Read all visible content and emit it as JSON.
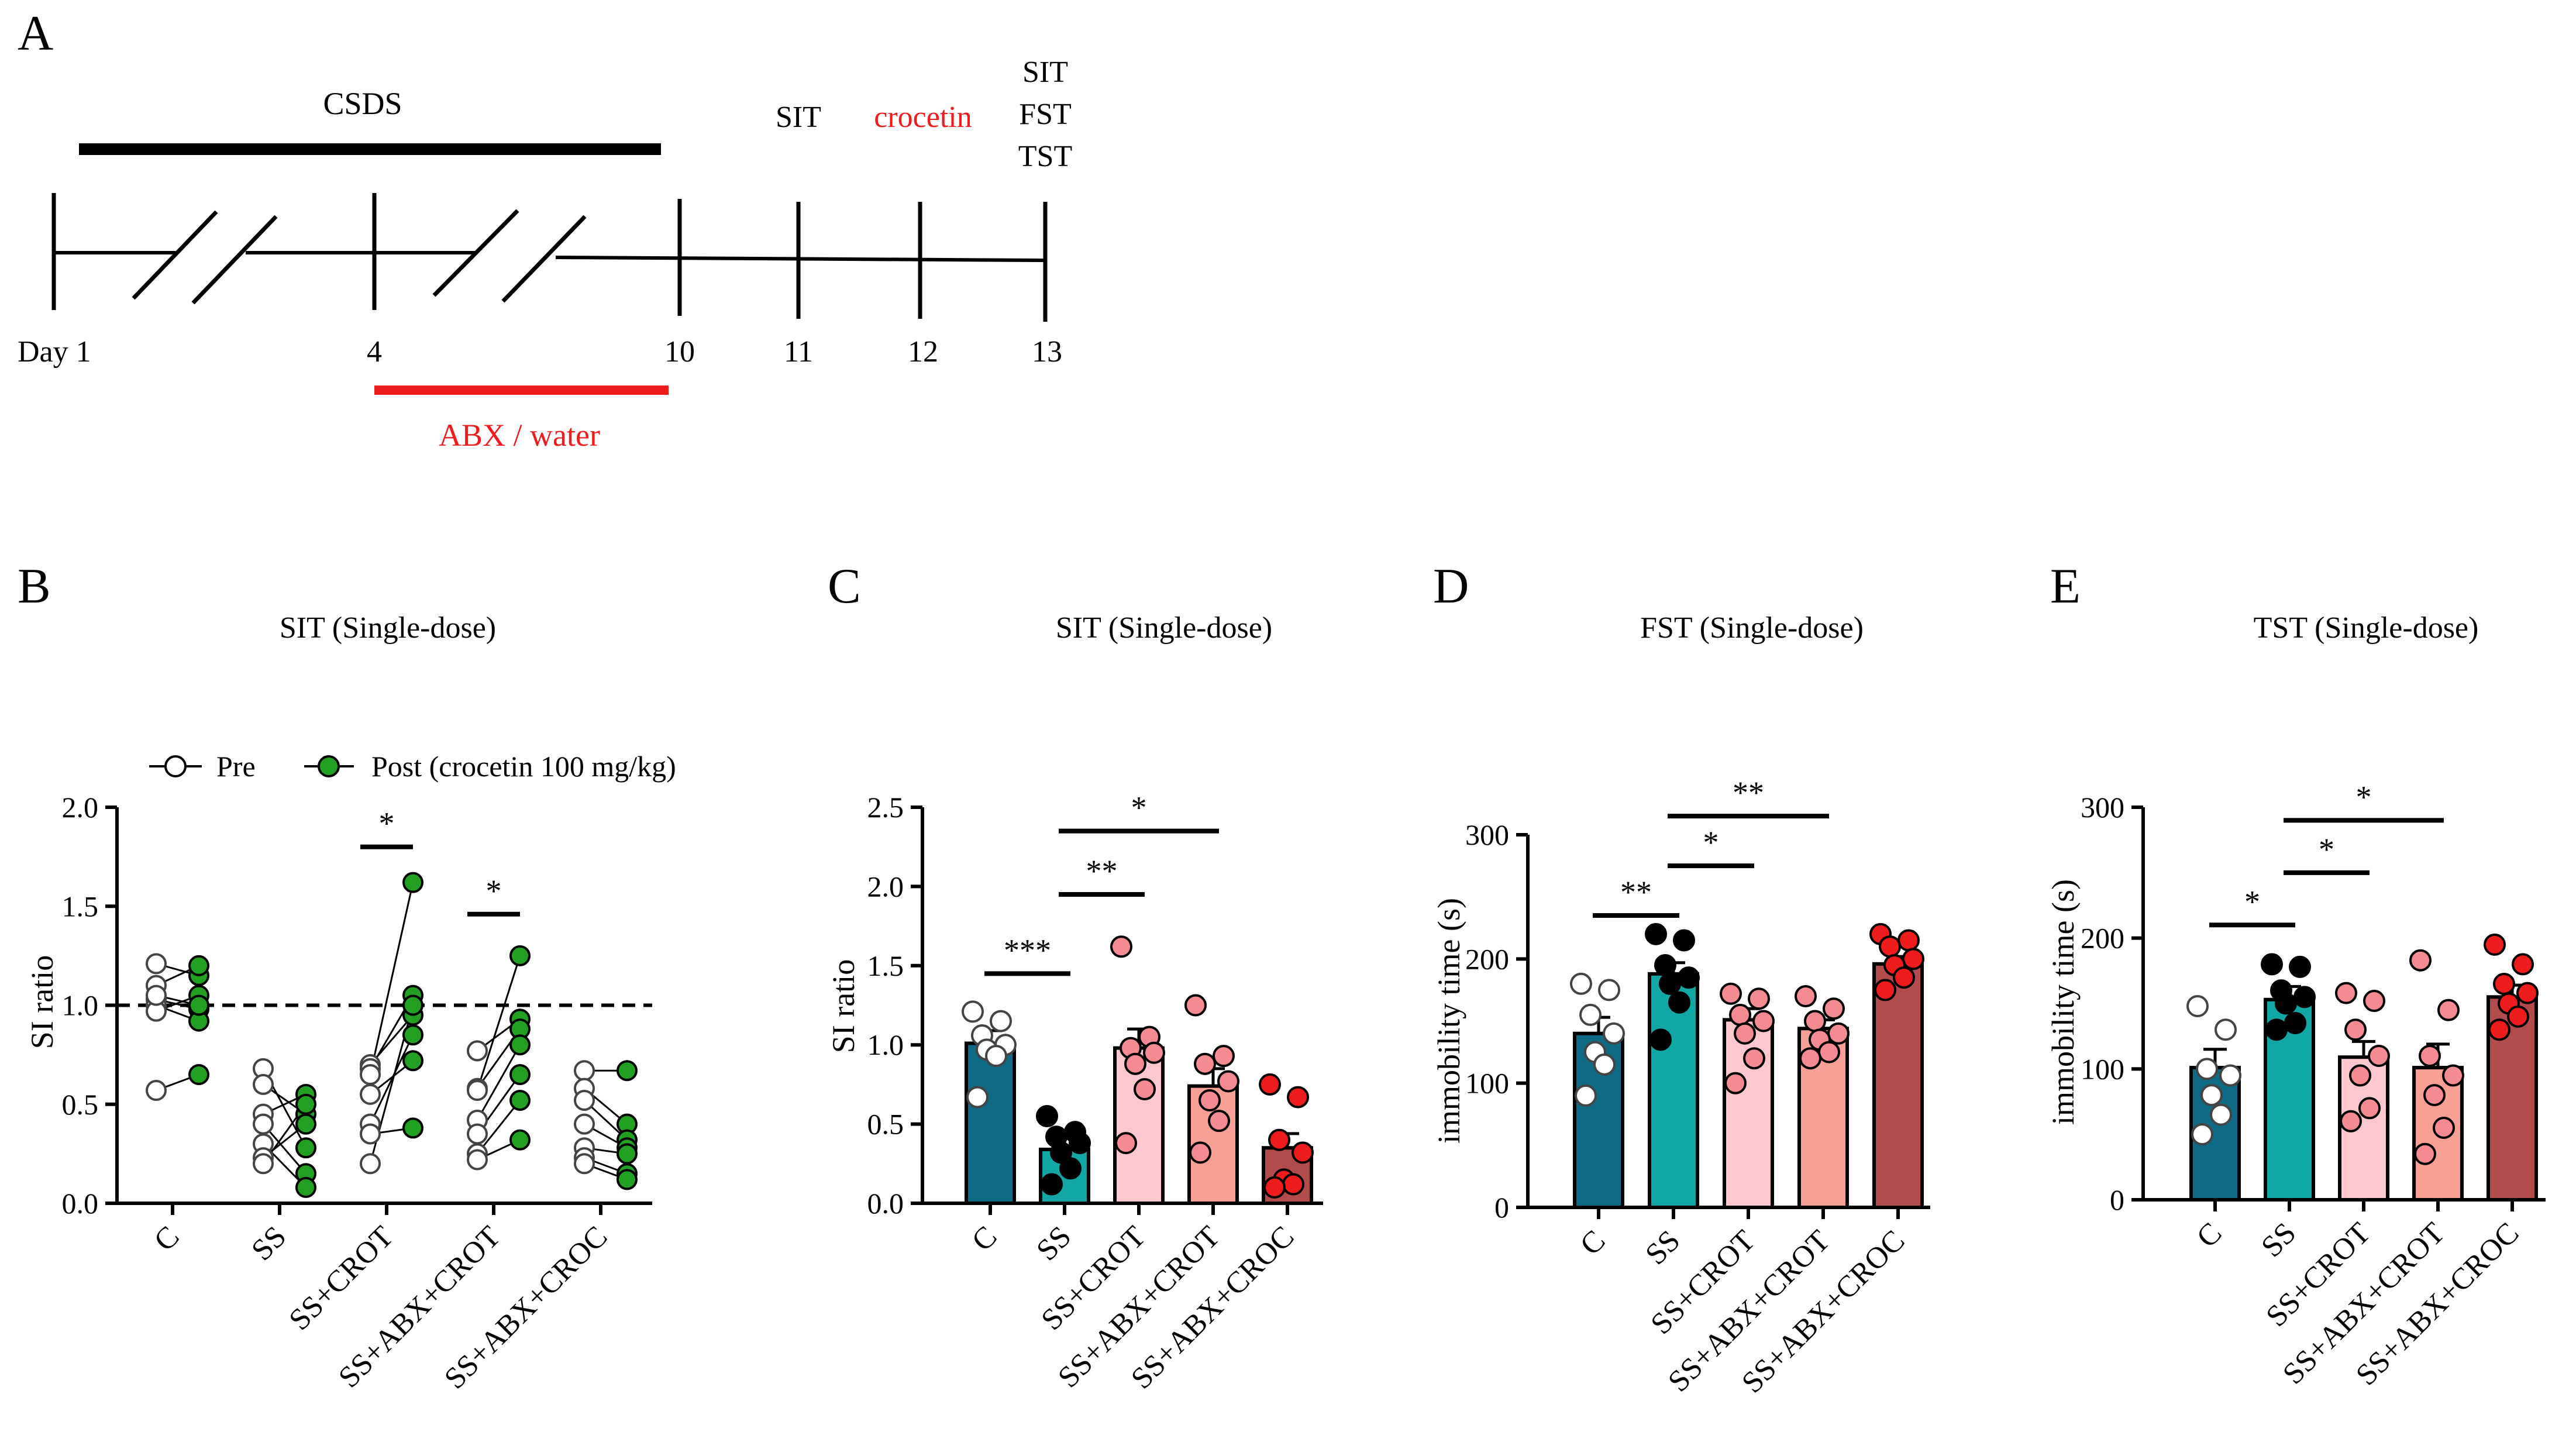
{
  "panel_labels": [
    "A",
    "B",
    "C",
    "D",
    "E"
  ],
  "timeline": {
    "cs_label": "CSDS",
    "day_labels": [
      "Day 1",
      "4",
      "10",
      "11",
      "12",
      "13"
    ],
    "event_labels": [
      "SIT",
      "crocetin",
      "SIT",
      "FST",
      "TST"
    ],
    "abx_label": "ABX / water",
    "colors": {
      "black": "#000000",
      "red": "#ee1c1c"
    }
  },
  "chart_data": [
    {
      "panel": "B",
      "type": "scatter",
      "title": "SIT (Single-dose)",
      "xlabel": "",
      "ylabel": "SI ratio",
      "ylim": [
        0,
        2.0
      ],
      "yticks": [
        "0.0",
        "0.5",
        "1.0",
        "1.5",
        "2.0"
      ],
      "categories": [
        "C",
        "SS",
        "SS+CROT",
        "SS+ABX+CROT",
        "SS+ABX+CROC"
      ],
      "legend": [
        "Pre",
        "Post (crocetin 100 mg/kg)"
      ],
      "reference_line": 1.0,
      "pairs": [
        [
          [
            1.21,
            1.15
          ],
          [
            1.1,
            1.2
          ],
          [
            1.03,
            0.98
          ],
          [
            1.0,
            0.92
          ],
          [
            0.57,
            0.65
          ],
          [
            0.97,
            1.05
          ],
          [
            1.05,
            1.0
          ]
        ],
        [
          [
            0.68,
            0.28
          ],
          [
            0.6,
            0.45
          ],
          [
            0.45,
            0.55
          ],
          [
            0.4,
            0.15
          ],
          [
            0.3,
            0.08
          ],
          [
            0.23,
            0.4
          ],
          [
            0.2,
            0.5
          ]
        ],
        [
          [
            0.7,
            0.95
          ],
          [
            0.68,
            1.05
          ],
          [
            0.65,
            1.62
          ],
          [
            0.55,
            0.72
          ],
          [
            0.4,
            0.85
          ],
          [
            0.35,
            0.38
          ],
          [
            0.2,
            1.0
          ]
        ],
        [
          [
            0.77,
            0.93
          ],
          [
            0.58,
            0.88
          ],
          [
            0.57,
            1.25
          ],
          [
            0.42,
            0.8
          ],
          [
            0.35,
            0.65
          ],
          [
            0.25,
            0.52
          ],
          [
            0.22,
            0.32
          ]
        ],
        [
          [
            0.67,
            0.67
          ],
          [
            0.58,
            0.4
          ],
          [
            0.52,
            0.32
          ],
          [
            0.4,
            0.28
          ],
          [
            0.28,
            0.25
          ],
          [
            0.23,
            0.15
          ],
          [
            0.2,
            0.12
          ]
        ]
      ],
      "significance": [
        {
          "group": 2,
          "label": "*",
          "y": 1.8
        },
        {
          "group": 3,
          "label": "*",
          "y": 1.46
        }
      ],
      "colors": {
        "pre": "#ffffff",
        "post": "#22a022"
      }
    },
    {
      "panel": "C",
      "type": "bar",
      "title": "SIT (Single-dose)",
      "xlabel": "",
      "ylabel": "SI ratio",
      "ylim": [
        0,
        2.5
      ],
      "yticks": [
        "0.0",
        "0.5",
        "1.0",
        "1.5",
        "2.0",
        "2.5"
      ],
      "categories": [
        "C",
        "SS",
        "SS+CROT",
        "SS+ABX+CROT",
        "SS+ABX+CROC"
      ],
      "means": [
        1.01,
        0.34,
        0.98,
        0.74,
        0.35
      ],
      "sems": [
        0.08,
        0.07,
        0.12,
        0.11,
        0.09
      ],
      "points": [
        [
          1.21,
          1.15,
          1.06,
          1.0,
          0.97,
          0.93,
          0.67
        ],
        [
          0.55,
          0.45,
          0.42,
          0.38,
          0.32,
          0.22,
          0.12
        ],
        [
          1.62,
          1.05,
          0.98,
          0.95,
          0.88,
          0.72,
          0.38
        ],
        [
          1.25,
          0.93,
          0.88,
          0.77,
          0.65,
          0.52,
          0.32
        ],
        [
          0.75,
          0.67,
          0.4,
          0.32,
          0.15,
          0.12,
          0.1
        ]
      ],
      "significance": [
        {
          "from": 0,
          "to": 1,
          "label": "***",
          "y": 1.45
        },
        {
          "from": 1,
          "to": 2,
          "label": "**",
          "y": 1.95
        },
        {
          "from": 1,
          "to": 3,
          "label": "*",
          "y": 2.35
        }
      ],
      "colors": [
        "#0f6b85",
        "#11a7a5",
        "#ffc8cf",
        "#f6a096",
        "#b24b4b"
      ],
      "point_colors": [
        "#ffffff",
        "#000000",
        "#f48b93",
        "#f48b93",
        "#ee1c1c"
      ]
    },
    {
      "panel": "D",
      "type": "bar",
      "title": "FST (Single-dose)",
      "xlabel": "",
      "ylabel": "immobility time (s)",
      "ylim": [
        0,
        300
      ],
      "yticks": [
        "0",
        "100",
        "200",
        "300"
      ],
      "categories": [
        "C",
        "SS",
        "SS+CROT",
        "SS+ABX+CROT",
        "SS+ABX+CROC"
      ],
      "means": [
        140,
        188,
        151,
        144,
        196
      ],
      "sems": [
        13,
        9,
        9,
        7,
        6
      ],
      "points": [
        [
          180,
          175,
          155,
          140,
          125,
          115,
          90
        ],
        [
          220,
          215,
          195,
          185,
          180,
          165,
          135
        ],
        [
          172,
          168,
          155,
          150,
          140,
          120,
          100
        ],
        [
          170,
          160,
          150,
          140,
          135,
          125,
          120
        ],
        [
          220,
          215,
          210,
          200,
          195,
          185,
          175
        ]
      ],
      "significance": [
        {
          "from": 0,
          "to": 1,
          "label": "**",
          "y": 235
        },
        {
          "from": 1,
          "to": 2,
          "label": "*",
          "y": 275
        },
        {
          "from": 1,
          "to": 3,
          "label": "**",
          "y": 315
        }
      ],
      "colors": [
        "#0f6b85",
        "#11a7a5",
        "#ffc8cf",
        "#f6a096",
        "#b24b4b"
      ],
      "point_colors": [
        "#ffffff",
        "#000000",
        "#f48b93",
        "#f48b93",
        "#ee1c1c"
      ]
    },
    {
      "panel": "E",
      "type": "bar",
      "title": "TST (Single-dose)",
      "xlabel": "",
      "ylabel": "immobility time (s)",
      "ylim": [
        0,
        300
      ],
      "yticks": [
        "0",
        "100",
        "200",
        "300"
      ],
      "categories": [
        "C",
        "SS",
        "SS+CROT",
        "SS+ABX+CROT",
        "SS+ABX+CROC"
      ],
      "means": [
        101,
        153,
        109,
        101,
        155
      ],
      "sems": [
        14,
        10,
        12,
        18,
        9
      ],
      "points": [
        [
          148,
          130,
          100,
          95,
          80,
          65,
          50
        ],
        [
          180,
          178,
          160,
          155,
          150,
          135,
          130
        ],
        [
          158,
          152,
          130,
          110,
          95,
          70,
          60
        ],
        [
          183,
          145,
          110,
          95,
          80,
          55,
          35
        ],
        [
          195,
          180,
          165,
          158,
          150,
          140,
          130
        ]
      ],
      "significance": [
        {
          "from": 0,
          "to": 1,
          "label": "*",
          "y": 210
        },
        {
          "from": 1,
          "to": 2,
          "label": "*",
          "y": 250
        },
        {
          "from": 1,
          "to": 3,
          "label": "*",
          "y": 290
        }
      ],
      "colors": [
        "#0f6b85",
        "#11a7a5",
        "#ffc8cf",
        "#f6a096",
        "#b24b4b"
      ],
      "point_colors": [
        "#ffffff",
        "#000000",
        "#f48b93",
        "#f48b93",
        "#ee1c1c"
      ]
    }
  ]
}
